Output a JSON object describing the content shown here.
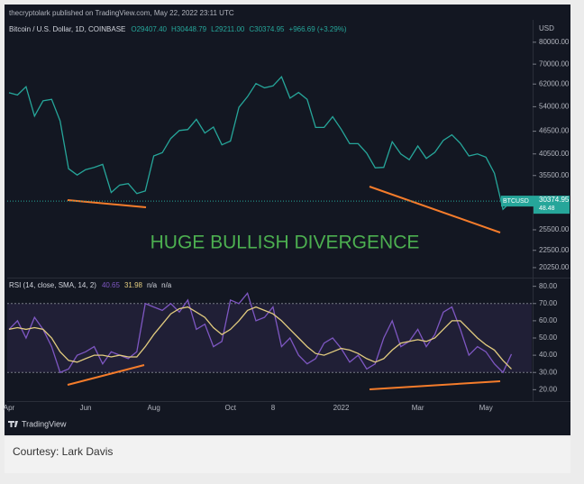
{
  "header": "thecryptolark published on TradingView.com, May 22, 2022 23:11 UTC",
  "footer_logo": "TradingView",
  "caption": "Courtesy: Lark Davis",
  "chart_data": [
    {
      "type": "line",
      "title": "Bitcoin / U.S. Dollar, 1D, COINBASE",
      "ohlc": [
        "O29407.40",
        "H30448.79",
        "L29211.00",
        "C30374.95"
      ],
      "change": "+966.69 (+3.29%)",
      "axis_unit": "USD",
      "annotation": "HUGE BULLISH DIVERGENCE",
      "price_tag_sub": "48.48",
      "log_scale": true,
      "categories": [
        "Apr",
        null,
        null,
        null,
        null,
        null,
        null,
        null,
        null,
        "Jun",
        null,
        null,
        null,
        null,
        null,
        null,
        null,
        "Aug",
        null,
        null,
        null,
        null,
        null,
        null,
        null,
        null,
        "Oct",
        null,
        null,
        null,
        null,
        "8",
        null,
        null,
        null,
        null,
        null,
        null,
        null,
        "2022",
        null,
        null,
        null,
        null,
        null,
        null,
        null,
        null,
        "Mar",
        null,
        null,
        null,
        null,
        null,
        null,
        null,
        "May",
        null,
        null,
        null
      ],
      "series": [
        {
          "name": "BTCUSD",
          "color": "#26a69a",
          "values": [
            58800,
            58000,
            61000,
            51000,
            56000,
            56500,
            49500,
            37000,
            35600,
            36800,
            37300,
            38000,
            32000,
            33500,
            33800,
            31800,
            32300,
            40000,
            40800,
            44500,
            46700,
            47000,
            50000,
            46000,
            47700,
            42800,
            43800,
            53800,
            57400,
            62200,
            60600,
            61300,
            64800,
            56900,
            58900,
            56500,
            47600,
            47600,
            50800,
            47100,
            43100,
            43100,
            40700,
            37200,
            37300,
            43600,
            40500,
            39100,
            42500,
            39400,
            40900,
            44000,
            45500,
            43200,
            40000,
            40500,
            39700,
            36000,
            28900,
            30374.95
          ]
        }
      ],
      "ylim": [
        19160,
        91700
      ],
      "yticks": [
        {
          "value": 80000,
          "label": "80000.00"
        },
        {
          "value": 70000,
          "label": "70000.00"
        },
        {
          "value": 62000,
          "label": "62000.00"
        },
        {
          "value": 54000,
          "label": "54000.00"
        },
        {
          "value": 46500,
          "label": "46500.00"
        },
        {
          "value": 40500,
          "label": "40500.00"
        },
        {
          "value": 35500,
          "label": "35500.00"
        },
        {
          "value": 25500,
          "label": "25500.00"
        },
        {
          "value": 22500,
          "label": "22500.00"
        },
        {
          "value": 20250,
          "label": "20250.00"
        }
      ]
    },
    {
      "type": "line",
      "title": "RSI (14, close, SMA, 14, 2)",
      "legend_values": [
        "40.65",
        "31.98",
        "n/a",
        "n/a"
      ],
      "band": [
        30,
        70
      ],
      "series": [
        {
          "color": "#7e57c2",
          "values": [
            55,
            60,
            50,
            62,
            55,
            45,
            30,
            32,
            40,
            42,
            45,
            35,
            42,
            40,
            38,
            42,
            70,
            68,
            66,
            70,
            65,
            72,
            55,
            58,
            45,
            48,
            72,
            70,
            76,
            60,
            62,
            68,
            45,
            50,
            40,
            35,
            38,
            47,
            50,
            44,
            36,
            40,
            32,
            35,
            50,
            60,
            45,
            48,
            55,
            45,
            52,
            65,
            68,
            55,
            40,
            45,
            42,
            35,
            30,
            40.65
          ]
        },
        {
          "color": "#e2cc7f",
          "values": [
            55,
            56,
            55,
            56,
            55,
            50,
            42,
            37,
            36,
            38,
            40,
            40,
            39,
            40,
            39,
            39,
            45,
            52,
            58,
            64,
            67,
            68,
            65,
            62,
            56,
            52,
            55,
            60,
            66,
            68,
            66,
            64,
            60,
            55,
            50,
            45,
            41,
            40,
            42,
            44,
            43,
            41,
            38,
            36,
            38,
            43,
            47,
            48,
            49,
            48,
            50,
            55,
            60,
            60,
            55,
            50,
            46,
            43,
            37,
            31.98
          ]
        }
      ],
      "ylim": [
        16,
        84
      ],
      "yticks": [
        {
          "value": 80,
          "label": "80.00"
        },
        {
          "value": 70,
          "label": "70.00"
        },
        {
          "value": 60,
          "label": "60.00"
        },
        {
          "value": 50,
          "label": "50.00"
        },
        {
          "value": 40,
          "label": "40.00"
        },
        {
          "value": 30,
          "label": "30.00"
        },
        {
          "value": 20,
          "label": "20.00"
        }
      ]
    }
  ]
}
